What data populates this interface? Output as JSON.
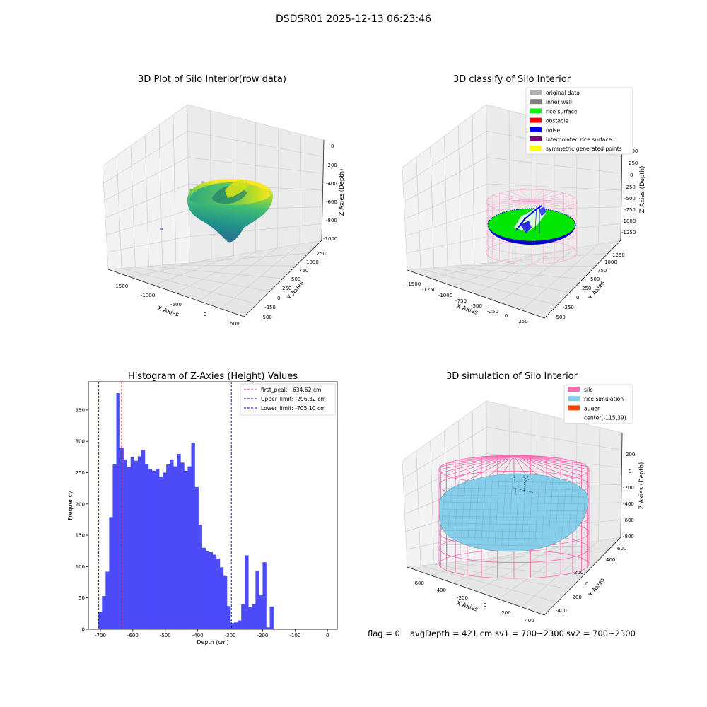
{
  "suptitle": "DSDSR01 2025-12-13 06:23:46",
  "status_line": {
    "flag": "flag = 0",
    "avg": "avgDepth = 421 cm",
    "sv1": "sv1 = 700~2300",
    "sv2": "sv2 = 700~2300"
  },
  "colors": {
    "hist_fill": "#4b4bf8",
    "peak_line": "#ff0000",
    "limit_line": "#0000cc",
    "silo_pink": "#ff69b4",
    "rice_blue": "#87ceeb",
    "auger": "#ff4500",
    "rice_green": "#00ee00",
    "noise_blue": "#0000dd",
    "pane_grey": "#f2f2f2"
  },
  "chart_data": [
    {
      "type": "scatter",
      "projection": "3d",
      "title": "3D Plot of Silo Interior(row data)",
      "xlabel": "X Axies",
      "ylabel": "Y Axies",
      "zlabel": "Z Axies (Depth)",
      "xticks": [
        "-1500",
        "-1000",
        "-500",
        "0",
        "500"
      ],
      "yticks": [
        "-500",
        "-250",
        "0",
        "250",
        "500",
        "750",
        "1000",
        "1250"
      ],
      "zticks": [
        "0",
        "-200",
        "-400",
        "-600",
        "-800",
        "-1000"
      ],
      "description_colormap": "viridis"
    },
    {
      "type": "scatter",
      "projection": "3d",
      "title": "3D classify of Silo Interior",
      "xlabel": "X Axies",
      "ylabel": "Y Axies",
      "zlabel": "Z Axies (Depth)",
      "xticks": [
        "-1500",
        "-1250",
        "-1000",
        "-750",
        "-500",
        "-250",
        "0",
        "250"
      ],
      "yticks": [
        "-500",
        "-250",
        "0",
        "250",
        "500",
        "750",
        "1000",
        "1250"
      ],
      "zticks": [
        "500",
        "250",
        "0",
        "-250",
        "-500",
        "-750",
        "-1000",
        "-1250"
      ],
      "legend_position": "top-right",
      "legend": [
        {
          "label": "original data",
          "color": "#b0b0b0"
        },
        {
          "label": "inner wall",
          "color": "#808080"
        },
        {
          "label": "rice surface",
          "color": "#00ff00"
        },
        {
          "label": "obstacle",
          "color": "#ff0000"
        },
        {
          "label": "noise",
          "color": "#0000ff"
        },
        {
          "label": "interpolated rice surface",
          "color": "#800080"
        },
        {
          "label": "symmetric generated points",
          "color": "#ffff00"
        }
      ]
    },
    {
      "type": "bar",
      "title": "Histogram of Z-Axies (Height) Values",
      "xlabel": "Depth (cm)",
      "ylabel": "Frequency",
      "xlim": [
        -737,
        30
      ],
      "ylim": [
        0,
        395
      ],
      "xticks": [
        -700,
        -600,
        -500,
        -400,
        -300,
        -200,
        -100,
        0
      ],
      "yticks": [
        0,
        50,
        100,
        150,
        200,
        250,
        300,
        350
      ],
      "bin_width": 11,
      "bin_start": -706,
      "values": [
        28,
        53,
        92,
        179,
        263,
        377,
        289,
        271,
        259,
        275,
        269,
        276,
        286,
        264,
        255,
        253,
        256,
        243,
        250,
        263,
        271,
        260,
        280,
        266,
        253,
        260,
        298,
        227,
        167,
        130,
        125,
        123,
        119,
        113,
        99,
        85,
        37,
        10,
        11,
        14,
        40,
        118,
        35,
        40,
        93,
        54,
        107,
        3,
        36
      ],
      "vlines": [
        {
          "x": -634.62,
          "label": "first_peak: -634.62 cm",
          "style": "peak"
        },
        {
          "x": -296.32,
          "label": "Upper_limit: -296.32 cm",
          "style": "limit"
        },
        {
          "x": -705.1,
          "label": "Lower_limit: -705.10 cm",
          "style": "limit"
        }
      ],
      "legend_position": "top-right"
    },
    {
      "type": "scatter",
      "projection": "3d",
      "title": "3D simulation of Silo Interior",
      "xlabel": "X Axies",
      "ylabel": "Y Axies",
      "zlabel": "Z Axies (Depth)",
      "xticks": [
        "-600",
        "-400",
        "-200",
        "0",
        "200",
        "400"
      ],
      "yticks": [
        "-400",
        "-200",
        "0",
        "200",
        "400",
        "600"
      ],
      "zticks": [
        "200",
        "0",
        "-200",
        "-400",
        "-600",
        "-800"
      ],
      "legend_position": "top-right",
      "legend": [
        {
          "label": "silo",
          "color": "#ff69b4"
        },
        {
          "label": "rice simulation",
          "color": "#87ceeb"
        },
        {
          "label": "auger",
          "color": "#ff4500"
        },
        {
          "label": "center(-115,39)",
          "color": ""
        }
      ]
    }
  ]
}
